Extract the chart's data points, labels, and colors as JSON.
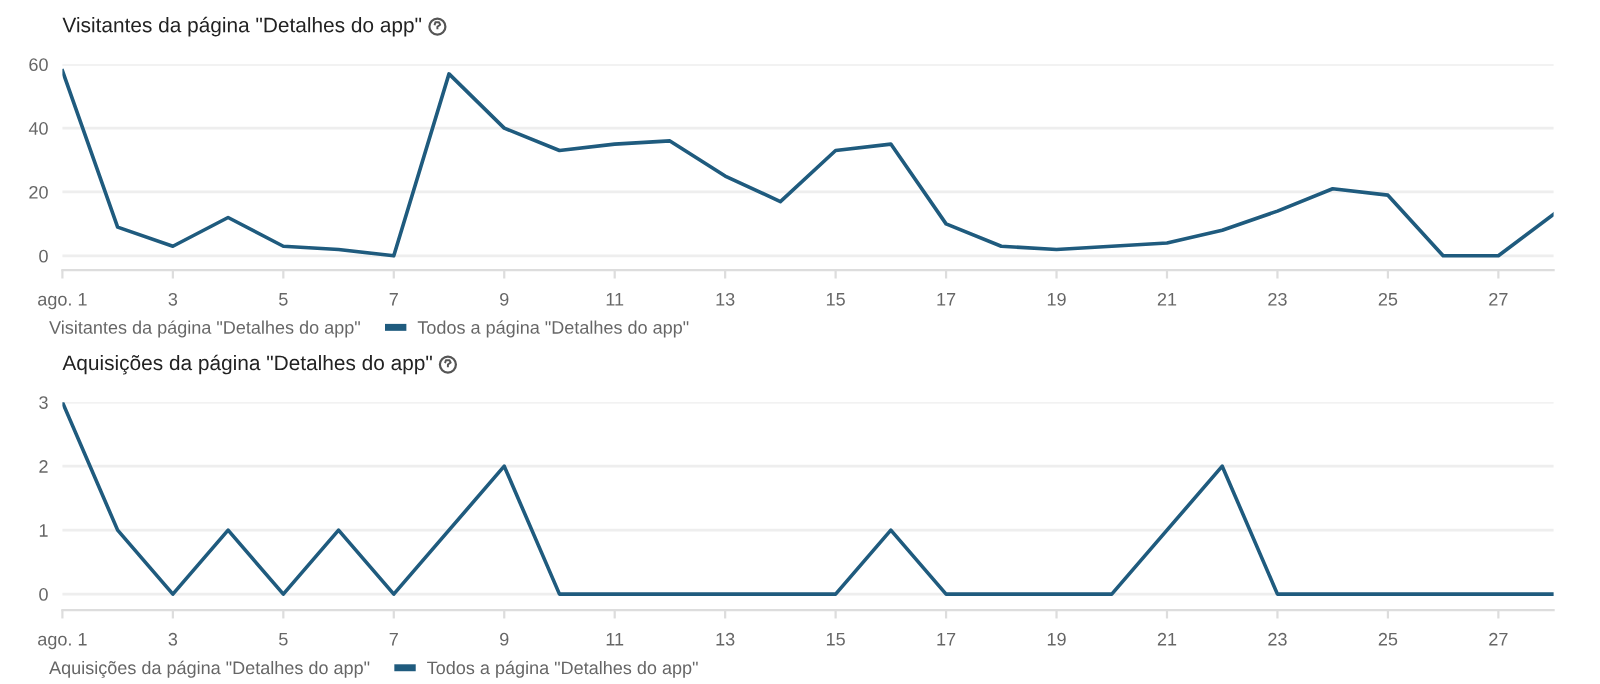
{
  "chart_data": [
    {
      "type": "line",
      "title": "Visitantes da página \"Detalhes do app\"",
      "legend_title": "Visitantes da página \"Detalhes do app\"",
      "x": [
        1,
        2,
        3,
        4,
        5,
        6,
        7,
        8,
        9,
        10,
        11,
        12,
        13,
        14,
        15,
        16,
        17,
        18,
        19,
        20,
        21,
        22,
        23,
        24,
        25,
        26,
        27,
        28
      ],
      "series": [
        {
          "name": "Todos a página \"Detalhes do app\"",
          "color": "#1f5b7e",
          "values": [
            58,
            9,
            3,
            12,
            3,
            2,
            0,
            57,
            40,
            33,
            35,
            36,
            25,
            17,
            33,
            35,
            10,
            3,
            2,
            3,
            4,
            8,
            14,
            21,
            19,
            0,
            0,
            13
          ]
        }
      ],
      "xlim": [
        1,
        28
      ],
      "xticks": [
        {
          "value": 1,
          "label": "ago. 1"
        },
        3,
        5,
        7,
        9,
        11,
        13,
        15,
        17,
        19,
        21,
        23,
        25,
        27
      ],
      "ylim": [
        -4.5,
        60
      ],
      "yticks": [
        0,
        20,
        40,
        60
      ],
      "grid": "y",
      "legend": "bottom left",
      "marker": "none",
      "line_style": "solid"
    },
    {
      "type": "line",
      "title": "Aquisições da página \"Detalhes do app\"",
      "legend_title": "Aquisições da página \"Detalhes do app\"",
      "x": [
        1,
        2,
        3,
        4,
        5,
        6,
        7,
        8,
        9,
        10,
        11,
        12,
        13,
        14,
        15,
        16,
        17,
        18,
        19,
        20,
        21,
        22,
        23,
        24,
        25,
        26,
        27,
        28
      ],
      "series": [
        {
          "name": "Todos a página \"Detalhes do app\"",
          "color": "#1f5b7e",
          "values": [
            3,
            1,
            0,
            1,
            0,
            1,
            0,
            1,
            2,
            0,
            0,
            0,
            0,
            0,
            0,
            1,
            0,
            0,
            0,
            0,
            1,
            2,
            0,
            0,
            0,
            0,
            0,
            0
          ]
        }
      ],
      "xlim": [
        1,
        28
      ],
      "xticks": [
        {
          "value": 1,
          "label": "ago. 1"
        },
        3,
        5,
        7,
        9,
        11,
        13,
        15,
        17,
        19,
        21,
        23,
        25,
        27
      ],
      "ylim": [
        -0.25,
        3
      ],
      "yticks": [
        0,
        1,
        2,
        3
      ],
      "grid": "y",
      "legend": "bottom left",
      "marker": "none",
      "line_style": "solid"
    }
  ]
}
